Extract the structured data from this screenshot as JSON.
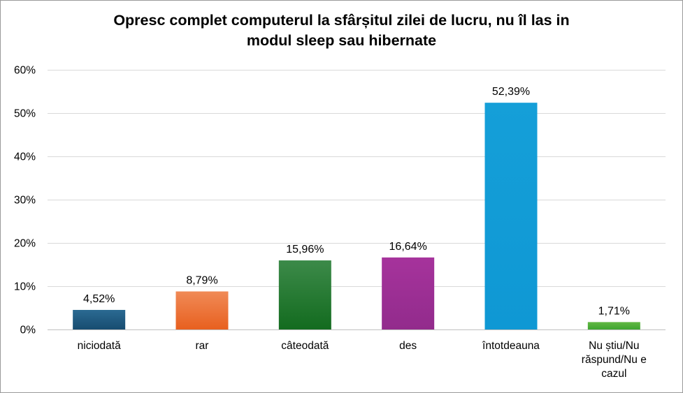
{
  "chart_data": {
    "type": "bar",
    "title": "Opresc complet computerul la sfârșitul zilei de lucru, nu îl las in modul sleep sau hibernate",
    "title_lines": [
      "Opresc complet computerul la sfârșitul zilei de lucru, nu îl las in",
      "modul sleep sau hibernate"
    ],
    "categories": [
      [
        "niciodată"
      ],
      [
        "rar"
      ],
      [
        "câteodată"
      ],
      [
        "des"
      ],
      [
        "întotdeauna"
      ],
      [
        "Nu știu/Nu",
        "răspund/Nu e",
        "cazul"
      ]
    ],
    "values": [
      4.52,
      8.79,
      15.96,
      16.64,
      52.39,
      1.71
    ],
    "value_labels": [
      "4,52%",
      "8,79%",
      "15,96%",
      "16,64%",
      "52,39%",
      "1,71%"
    ],
    "y_ticks": [
      "0%",
      "10%",
      "20%",
      "30%",
      "40%",
      "50%",
      "60%"
    ],
    "ylim": [
      0,
      60
    ],
    "xlabel": "",
    "ylabel": "",
    "grid": true,
    "legend": "none",
    "colors": [
      [
        "#2b6a92",
        "#174c70"
      ],
      [
        "#f08a56",
        "#e8601f"
      ],
      [
        "#3c8a49",
        "#136b1f"
      ],
      [
        "#a6339c",
        "#922b8c"
      ],
      [
        "#159fd8",
        "#0f98d4"
      ],
      [
        "#62b844",
        "#3ea530"
      ]
    ]
  }
}
